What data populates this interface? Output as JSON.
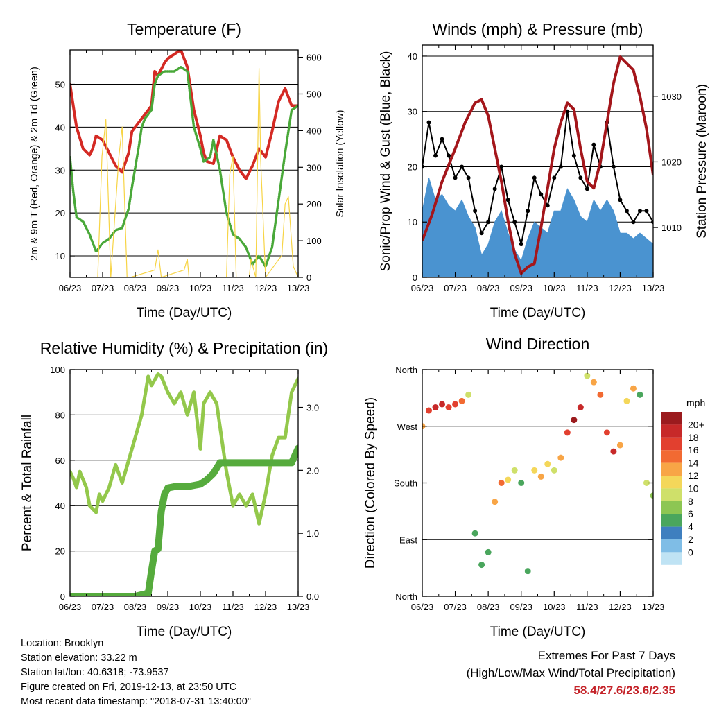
{
  "info": {
    "location": "Location: Brooklyn",
    "elevation": "Station elevation: 33.22 m",
    "latlon": "Station lat/lon: 40.6318; -73.9537",
    "created": "Figure created on Fri, 2019-12-13, at 23:50 UTC",
    "recent": "Most recent data timestamp: \"2018-07-31 13:40:00\""
  },
  "extremes": {
    "title": "Extremes For Past 7 Days",
    "subtitle": "(High/Low/Max Wind/Total Precipitation)",
    "values": "58.4/27.6/23.6/2.35"
  },
  "chart_data": [
    {
      "id": "temperature",
      "type": "line",
      "title": "Temperature (F)",
      "xlabel": "Time (Day/UTC)",
      "ylabel": "2m & 9m T (Red, Orange) & 2m Td (Green)",
      "y2label": "Solar Insolation (Yellow)",
      "categories": [
        "06/23",
        "07/23",
        "08/23",
        "09/23",
        "10/23",
        "11/23",
        "12/23",
        "13/23"
      ],
      "xlim": [
        0,
        7
      ],
      "ylim": [
        5,
        58
      ],
      "y2lim": [
        0,
        620
      ],
      "yticks": [
        10,
        20,
        30,
        40,
        50
      ],
      "y2ticks": [
        0,
        100,
        200,
        300,
        400,
        500,
        600
      ],
      "grid": true,
      "colors": {
        "temp": "#d42a24",
        "dew": "#49a839",
        "solar": "#f7d445"
      },
      "series": [
        {
          "key": "temp",
          "x": [
            0,
            0.1,
            0.2,
            0.4,
            0.6,
            0.7,
            0.8,
            1.0,
            1.2,
            1.4,
            1.6,
            1.8,
            1.9,
            2.1,
            2.2,
            2.3,
            2.5,
            2.6,
            2.7,
            2.9,
            3.0,
            3.2,
            3.4,
            3.6,
            3.8,
            4.0,
            4.1,
            4.2,
            4.4,
            4.6,
            4.8,
            5.0,
            5.2,
            5.4,
            5.6,
            5.8,
            6.0,
            6.2,
            6.4,
            6.6,
            6.8,
            7.0
          ],
          "y": [
            50,
            45,
            40,
            35,
            33.5,
            35,
            38,
            37,
            34,
            31,
            29.5,
            34,
            39,
            41,
            42,
            43,
            45,
            53,
            52,
            55,
            56,
            57,
            58,
            54,
            44,
            38,
            34,
            32,
            31.5,
            38,
            37,
            33,
            30,
            28,
            31,
            35,
            33,
            39,
            46,
            49,
            45,
            45
          ]
        },
        {
          "key": "dew",
          "x": [
            0,
            0.1,
            0.2,
            0.4,
            0.6,
            0.8,
            1.0,
            1.2,
            1.4,
            1.6,
            1.8,
            1.9,
            2.1,
            2.2,
            2.3,
            2.5,
            2.6,
            2.7,
            2.9,
            3.0,
            3.2,
            3.4,
            3.6,
            3.8,
            4.0,
            4.1,
            4.3,
            4.4,
            4.6,
            4.8,
            5.0,
            5.2,
            5.4,
            5.6,
            5.8,
            6.0,
            6.2,
            6.4,
            6.6,
            6.8,
            7.0
          ],
          "y": [
            33,
            25,
            19,
            18,
            15,
            11,
            13,
            14,
            16,
            16.5,
            21,
            26,
            35,
            40,
            42,
            44,
            50,
            52,
            53,
            53,
            53,
            54,
            53,
            40,
            35,
            32,
            33,
            37,
            30,
            20,
            15,
            14,
            12,
            8,
            10,
            7.5,
            12,
            23,
            34,
            44,
            45
          ]
        },
        {
          "key": "solar",
          "x": [
            0.85,
            0.98,
            1.1,
            1.25,
            1.5,
            1.6,
            1.75,
            1.85,
            2.6,
            2.7,
            2.8,
            3.5,
            3.6,
            3.65,
            3.7,
            4.8,
            4.9,
            5.0,
            5.1,
            5.5,
            5.55,
            5.7,
            5.8,
            5.85,
            6.0,
            6.5,
            6.6,
            6.7,
            6.85,
            7.0
          ],
          "y": [
            0,
            330,
            430,
            0,
            330,
            410,
            0,
            0,
            20,
            75,
            0,
            20,
            50,
            0,
            0,
            0,
            280,
            330,
            0,
            0,
            50,
            0,
            570,
            320,
            0,
            60,
            200,
            220,
            30,
            0
          ]
        }
      ]
    },
    {
      "id": "winds",
      "type": "scatter",
      "title": "Winds (mph) & Pressure (mb)",
      "xlabel": "Time (Day/UTC)",
      "ylabel": "Sonic/Prop Wind & Gust (Blue, Black)",
      "y2label": "Station Pressure (Maroon)",
      "categories": [
        "06/23",
        "07/23",
        "08/23",
        "09/23",
        "10/23",
        "11/23",
        "12/23",
        "13/23"
      ],
      "xlim": [
        0,
        7
      ],
      "ylim": [
        0,
        42
      ],
      "y2lim": [
        1002.4,
        1037.8
      ],
      "yticks": [
        0,
        10,
        20,
        30,
        40
      ],
      "y2ticks": [
        1010,
        1020,
        1030
      ],
      "grid": true,
      "colors": {
        "wind": "#4a93d0",
        "gust": "#000000",
        "pressure": "#a4161b"
      },
      "series": [
        {
          "key": "wind",
          "x": [
            0,
            0.2,
            0.4,
            0.6,
            0.8,
            1.0,
            1.2,
            1.4,
            1.6,
            1.8,
            2.0,
            2.2,
            2.4,
            2.6,
            2.8,
            3.0,
            3.2,
            3.4,
            3.6,
            3.8,
            4.0,
            4.2,
            4.4,
            4.6,
            4.8,
            5.0,
            5.2,
            5.4,
            5.6,
            5.8,
            6.0,
            6.2,
            6.4,
            6.6,
            6.8,
            7.0
          ],
          "y": [
            12,
            18,
            14,
            15,
            13,
            12,
            14,
            11,
            9,
            4,
            6,
            10,
            12,
            8,
            5,
            3,
            7,
            10,
            9,
            8,
            12,
            12,
            16,
            14,
            11,
            10,
            14,
            12,
            14,
            12,
            8,
            8,
            7,
            8,
            7,
            6
          ]
        },
        {
          "key": "gust",
          "x": [
            0,
            0.2,
            0.4,
            0.6,
            0.8,
            1.0,
            1.2,
            1.4,
            1.6,
            1.8,
            2.0,
            2.2,
            2.4,
            2.6,
            2.8,
            3.0,
            3.2,
            3.4,
            3.6,
            3.8,
            4.0,
            4.2,
            4.4,
            4.6,
            4.8,
            5.0,
            5.2,
            5.4,
            5.6,
            5.8,
            6.0,
            6.2,
            6.4,
            6.6,
            6.8,
            7.0
          ],
          "y": [
            20,
            28,
            22,
            25,
            22,
            18,
            20,
            18,
            12,
            8,
            10,
            16,
            20,
            14,
            10,
            6,
            12,
            18,
            15,
            13,
            18,
            20,
            30,
            22,
            18,
            16,
            24,
            20,
            28,
            20,
            14,
            12,
            10,
            12,
            12,
            10
          ]
        },
        {
          "key": "pressure",
          "x": [
            0,
            0.3,
            0.6,
            1.0,
            1.3,
            1.6,
            1.8,
            2.0,
            2.2,
            2.4,
            2.6,
            2.8,
            3.0,
            3.2,
            3.4,
            3.6,
            3.8,
            4.0,
            4.2,
            4.4,
            4.6,
            4.8,
            5.0,
            5.2,
            5.4,
            5.6,
            5.8,
            6.0,
            6.2,
            6.4,
            6.6,
            6.8,
            7.0
          ],
          "y": [
            1008,
            1012,
            1017,
            1022,
            1026,
            1029,
            1029.5,
            1027,
            1022,
            1017,
            1011,
            1006,
            1003,
            1004,
            1004.5,
            1010,
            1016,
            1022,
            1026,
            1029,
            1028,
            1022,
            1017,
            1016,
            1020,
            1026,
            1032,
            1036,
            1035,
            1034,
            1030,
            1025,
            1018
          ]
        }
      ]
    },
    {
      "id": "humidity",
      "type": "line",
      "title": "Relative Humidity (%) & Precipitation (in)",
      "xlabel": "Time (Day/UTC)",
      "ylabel": "Percent & Total Rainfall",
      "categories": [
        "06/23",
        "07/23",
        "08/23",
        "09/23",
        "10/23",
        "11/23",
        "12/23",
        "13/23"
      ],
      "xlim": [
        0,
        7
      ],
      "ylim": [
        0,
        100
      ],
      "y2lim": [
        0,
        3.6
      ],
      "yticks": [
        0,
        20,
        40,
        60,
        80,
        100
      ],
      "y2ticks": [
        0.0,
        1.0,
        2.0,
        3.0
      ],
      "y2ticklabels": [
        "0.0",
        "1.0",
        "2.0",
        "3.0"
      ],
      "grid": true,
      "colors": {
        "rh": "#93c84b",
        "precip": "#56ab3d"
      },
      "series": [
        {
          "key": "rh",
          "x": [
            0,
            0.1,
            0.2,
            0.3,
            0.5,
            0.6,
            0.8,
            0.9,
            1.0,
            1.2,
            1.4,
            1.6,
            1.8,
            2.0,
            2.2,
            2.4,
            2.5,
            2.7,
            2.8,
            3.0,
            3.2,
            3.4,
            3.6,
            3.8,
            4.0,
            4.1,
            4.3,
            4.5,
            4.7,
            4.8,
            5.0,
            5.2,
            5.4,
            5.6,
            5.8,
            6.0,
            6.2,
            6.4,
            6.6,
            6.8,
            7.0
          ],
          "y": [
            55,
            52,
            48,
            55,
            48,
            40,
            37,
            45,
            42,
            48,
            58,
            50,
            60,
            70,
            80,
            97,
            93,
            98,
            97,
            90,
            85,
            90,
            80,
            90,
            65,
            85,
            90,
            85,
            65,
            55,
            40,
            45,
            40,
            45,
            32,
            45,
            62,
            70,
            70,
            90,
            96
          ]
        },
        {
          "key": "precip",
          "x": [
            0,
            0.5,
            1.0,
            1.5,
            2.0,
            2.4,
            2.5,
            2.6,
            2.7,
            2.8,
            2.9,
            3.0,
            3.2,
            3.4,
            3.6,
            3.8,
            4.0,
            4.2,
            4.4,
            4.6,
            4.8,
            5.0,
            5.5,
            6.0,
            6.5,
            6.8,
            7.0
          ],
          "y": [
            0,
            0,
            0,
            0,
            0,
            0.05,
            0.4,
            0.72,
            0.75,
            1.35,
            1.62,
            1.72,
            1.74,
            1.74,
            1.74,
            1.76,
            1.78,
            1.85,
            1.95,
            2.12,
            2.12,
            2.12,
            2.12,
            2.12,
            2.12,
            2.12,
            2.35
          ]
        }
      ]
    },
    {
      "id": "direction",
      "type": "scatter",
      "title": "Wind Direction",
      "xlabel": "Time (Day/UTC)",
      "ylabel": "Direction (Colored By Speed)",
      "categories": [
        "06/23",
        "07/23",
        "08/23",
        "09/23",
        "10/23",
        "11/23",
        "12/23",
        "13/23"
      ],
      "xlim": [
        0,
        7
      ],
      "ylim": [
        0,
        360
      ],
      "yticks": [
        0,
        90,
        180,
        270,
        360
      ],
      "yticklabels": [
        "North",
        "East",
        "South",
        "West",
        "North"
      ],
      "grid": true,
      "legend": {
        "title": "mph",
        "labels": [
          "20+",
          "18",
          "16",
          "14",
          "12",
          "10",
          "8",
          "6",
          "4",
          "2",
          "0"
        ],
        "colors": [
          "#9b1b1e",
          "#c72929",
          "#e2402f",
          "#f26a32",
          "#f8a546",
          "#f4d75a",
          "#cfe06a",
          "#8dc653",
          "#4aa65d",
          "#3e7fbf",
          "#7fbde6",
          "#bfe3f4"
        ]
      },
      "series": [
        {
          "key": "direction",
          "x": [
            0,
            0.2,
            0.4,
            0.6,
            0.8,
            1.0,
            1.2,
            1.4,
            1.6,
            1.8,
            2.0,
            2.2,
            2.4,
            2.6,
            2.8,
            3.0,
            3.2,
            3.4,
            3.6,
            3.8,
            4.0,
            4.2,
            4.4,
            4.6,
            4.8,
            5.0,
            5.2,
            5.4,
            5.6,
            5.8,
            6.0,
            6.2,
            6.4,
            6.6,
            6.8,
            7.0
          ],
          "y": [
            270,
            295,
            300,
            305,
            300,
            305,
            310,
            320,
            100,
            50,
            70,
            150,
            180,
            185,
            200,
            180,
            40,
            200,
            190,
            210,
            200,
            220,
            260,
            280,
            300,
            350,
            340,
            320,
            260,
            230,
            240,
            310,
            330,
            320,
            180,
            160
          ],
          "speed": [
            12,
            16,
            18,
            18,
            16,
            16,
            14,
            8,
            4,
            4,
            4,
            12,
            14,
            10,
            8,
            4,
            4,
            10,
            12,
            10,
            8,
            12,
            16,
            20,
            18,
            8,
            12,
            14,
            16,
            18,
            12,
            10,
            12,
            4,
            8,
            6
          ]
        }
      ]
    }
  ]
}
